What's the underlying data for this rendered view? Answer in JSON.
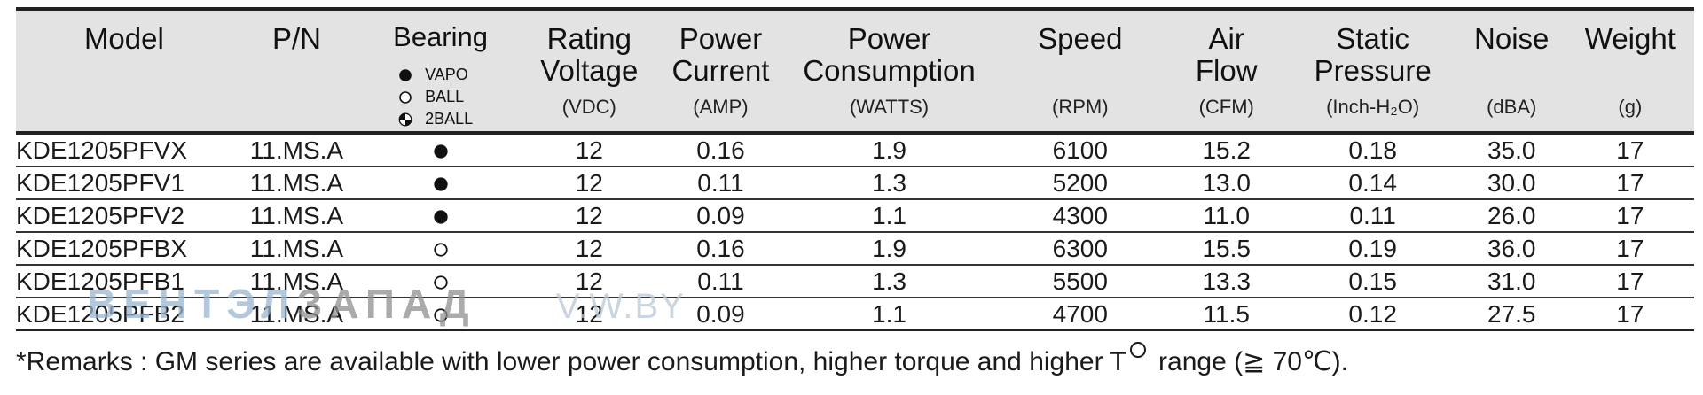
{
  "table": {
    "headers": {
      "model": "Model",
      "pn": "P/N",
      "bearing": "Bearing",
      "rating_voltage": {
        "line1": "Rating",
        "line2": "Voltage",
        "unit": "(VDC)"
      },
      "power_current": {
        "line1": "Power",
        "line2": "Current",
        "unit": "(AMP)"
      },
      "power_consumption": {
        "line1": "Power",
        "line2": "Consumption",
        "unit": "(WATTS)"
      },
      "speed": {
        "line1": "Speed",
        "unit": "(RPM)"
      },
      "air_flow": {
        "line1": "Air",
        "line2": "Flow",
        "unit": "(CFM)"
      },
      "static_pressure": {
        "line1": "Static",
        "line2": "Pressure",
        "unit": "(Inch-H₂O)"
      },
      "noise": {
        "line1": "Noise",
        "unit": "(dBA)"
      },
      "weight": {
        "line1": "Weight",
        "unit": "(g)"
      }
    },
    "bearing_legend": [
      {
        "label": "VAPO",
        "icon": "filled-circle-icon"
      },
      {
        "label": "BALL",
        "icon": "hollow-circle-icon"
      },
      {
        "label": "2BALL",
        "icon": "quartered-circle-icon"
      }
    ],
    "rows": [
      {
        "model": "KDE1205PFVX",
        "pn": "11.MS.A",
        "bearing": "VAPO",
        "voltage": "12",
        "current": "0.16",
        "consumption": "1.9",
        "speed": "6100",
        "air_flow": "15.2",
        "static_pressure": "0.18",
        "noise": "35.0",
        "weight": "17"
      },
      {
        "model": "KDE1205PFV1",
        "pn": "11.MS.A",
        "bearing": "VAPO",
        "voltage": "12",
        "current": "0.11",
        "consumption": "1.3",
        "speed": "5200",
        "air_flow": "13.0",
        "static_pressure": "0.14",
        "noise": "30.0",
        "weight": "17"
      },
      {
        "model": "KDE1205PFV2",
        "pn": "11.MS.A",
        "bearing": "VAPO",
        "voltage": "12",
        "current": "0.09",
        "consumption": "1.1",
        "speed": "4300",
        "air_flow": "11.0",
        "static_pressure": "0.11",
        "noise": "26.0",
        "weight": "17"
      },
      {
        "model": "KDE1205PFBX",
        "pn": "11.MS.A",
        "bearing": "BALL",
        "voltage": "12",
        "current": "0.16",
        "consumption": "1.9",
        "speed": "6300",
        "air_flow": "15.5",
        "static_pressure": "0.19",
        "noise": "36.0",
        "weight": "17"
      },
      {
        "model": "KDE1205PFB1",
        "pn": "11.MS.A",
        "bearing": "BALL",
        "voltage": "12",
        "current": "0.11",
        "consumption": "1.3",
        "speed": "5500",
        "air_flow": "13.3",
        "static_pressure": "0.15",
        "noise": "31.0",
        "weight": "17"
      },
      {
        "model": "KDE1205PFB2",
        "pn": "11.MS.A",
        "bearing": "BALL",
        "voltage": "12",
        "current": "0.09",
        "consumption": "1.1",
        "speed": "4700",
        "air_flow": "11.5",
        "static_pressure": "0.12",
        "noise": "27.5",
        "weight": "17"
      }
    ]
  },
  "remarks": {
    "before": "*Remarks : GM series are available with lower power consumption, higher torque and higher T",
    "after": " range (≧ 70℃)."
  },
  "watermark": {
    "part1": "ВЕНТЭЛ",
    "part2": "ЗАПАД",
    "part3": "V.W.BY"
  },
  "colors": {
    "header_bg": "#e3e3e3",
    "rule": "#222222",
    "text": "#1a1a1a",
    "watermark_blue": "#9ab6cf",
    "watermark_gray": "#8f8f8f"
  }
}
